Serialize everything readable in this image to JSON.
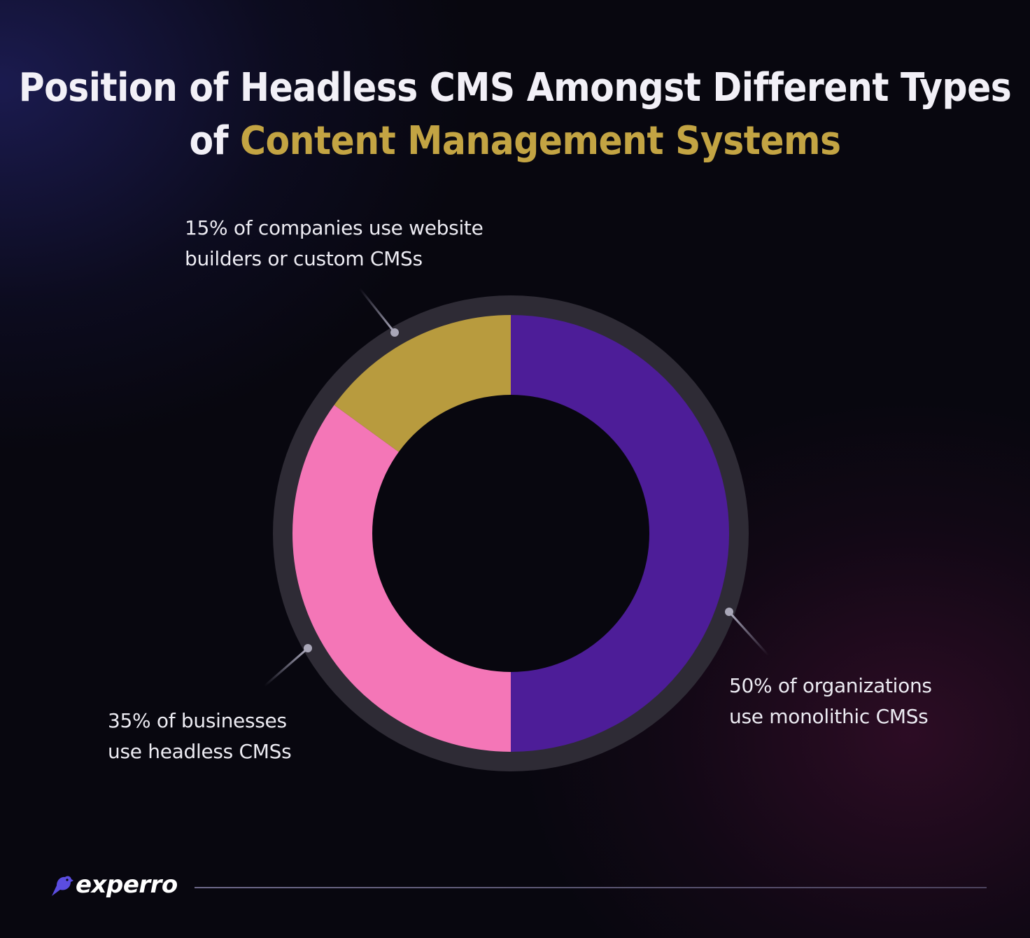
{
  "title": {
    "line1": "Position of Headless CMS Amongst Different Types",
    "line2_prefix": "of ",
    "line2_highlight": "Content Management Systems"
  },
  "colors": {
    "monolithic": "#4d1d98",
    "headless": "#f476b7",
    "builders": "#b89b3e",
    "ring": "#2e2b35",
    "highlight_text": "#c3a443"
  },
  "labels": {
    "builders": {
      "line1": "15% of companies use website",
      "line2": "builders or custom CMSs"
    },
    "headless": {
      "line1": "35% of businesses",
      "line2": "use headless CMSs"
    },
    "monolithic": {
      "line1": "50% of organizations",
      "line2": "use monolithic CMSs"
    }
  },
  "logo": {
    "text": "experro",
    "icon": "bird-icon"
  },
  "chart_data": {
    "type": "pie",
    "subtype": "donut",
    "title": "Position of Headless CMS Amongst Different Types of Content Management Systems",
    "categories": [
      "Monolithic CMSs",
      "Headless CMSs",
      "Website builders or custom CMSs"
    ],
    "values": [
      50,
      35,
      15
    ],
    "unit": "%",
    "colors": [
      "#4d1d98",
      "#f476b7",
      "#b89b3e"
    ],
    "annotations": [
      "50% of organizations use monolithic CMSs",
      "35% of businesses use headless CMSs",
      "15% of companies use website builders or custom CMSs"
    ],
    "start_angle": "12 o'clock, clockwise",
    "legend": "none (callout labels)"
  }
}
